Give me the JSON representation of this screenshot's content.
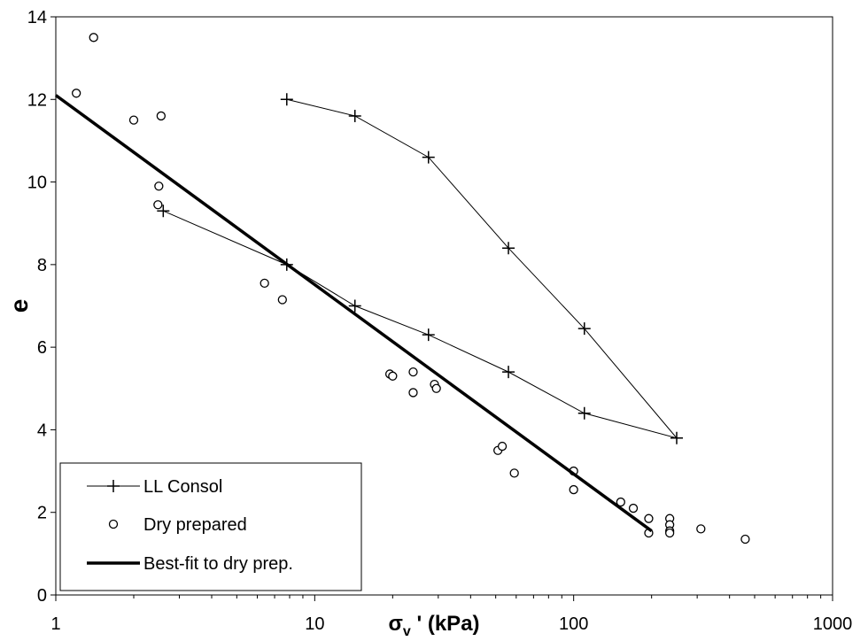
{
  "chart_data": {
    "type": "scatter",
    "x_scale": "log",
    "xlim": [
      1,
      1000
    ],
    "ylim": [
      0,
      14
    ],
    "x_ticks": [
      "1",
      "10",
      "100",
      "1000"
    ],
    "y_ticks": [
      "0",
      "2",
      "4",
      "6",
      "8",
      "10",
      "12",
      "14"
    ],
    "ylabel": "e",
    "xlabel": {
      "symbol": "σ",
      "subscript": "v",
      "rest": " ' (kPa)"
    },
    "grid": false,
    "legend_position": "bottom-left",
    "series": [
      {
        "name": "LL Consol",
        "style": "line-plus",
        "color": "#000000",
        "points": [
          [
            2.6,
            9.3
          ],
          [
            7.8,
            8.0
          ],
          [
            14.3,
            7.0
          ],
          [
            27.5,
            6.3
          ],
          [
            56,
            5.4
          ],
          [
            110,
            4.4
          ],
          [
            250,
            3.8
          ],
          [
            110,
            6.45
          ],
          [
            56,
            8.4
          ],
          [
            27.5,
            10.6
          ],
          [
            14.3,
            11.6
          ],
          [
            7.8,
            12.0
          ]
        ]
      },
      {
        "name": "Dry prepared",
        "style": "open-circle",
        "color": "#000000",
        "points": [
          [
            1.2,
            12.15
          ],
          [
            1.4,
            13.5
          ],
          [
            2.0,
            11.5
          ],
          [
            2.55,
            11.6
          ],
          [
            2.5,
            9.9
          ],
          [
            2.48,
            9.45
          ],
          [
            6.4,
            7.55
          ],
          [
            7.5,
            7.15
          ],
          [
            19.5,
            5.35
          ],
          [
            20,
            5.3
          ],
          [
            24,
            5.4
          ],
          [
            24,
            4.9
          ],
          [
            29,
            5.1
          ],
          [
            29.5,
            5.0
          ],
          [
            51,
            3.5
          ],
          [
            53,
            3.6
          ],
          [
            59,
            2.95
          ],
          [
            100,
            3.0
          ],
          [
            100,
            2.55
          ],
          [
            152,
            2.25
          ],
          [
            170,
            2.1
          ],
          [
            195,
            1.85
          ],
          [
            195,
            1.5
          ],
          [
            235,
            1.85
          ],
          [
            235,
            1.7
          ],
          [
            235,
            1.55
          ],
          [
            235,
            1.5
          ],
          [
            310,
            1.6
          ],
          [
            460,
            1.35
          ]
        ]
      },
      {
        "name": "Best-fit to dry prep.",
        "style": "thick-line",
        "color": "#000000",
        "points": [
          [
            1,
            12.1
          ],
          [
            200,
            1.55
          ]
        ]
      }
    ]
  }
}
